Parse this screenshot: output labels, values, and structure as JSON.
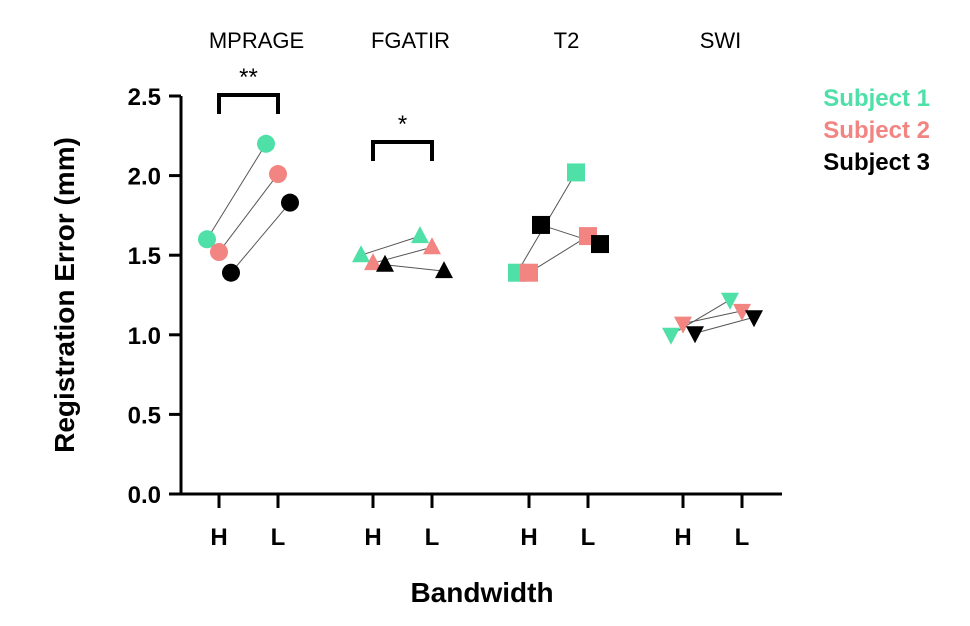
{
  "chart_data": {
    "type": "scatter",
    "title": "",
    "xlabel": "Bandwidth",
    "ylabel": "Registration Error (mm)",
    "ylim": [
      0,
      2.5
    ],
    "yticks": [
      "0.0",
      "0.5",
      "1.0",
      "1.5",
      "2.0",
      "2.5"
    ],
    "grid": false,
    "legend_position": "top-right",
    "categories": [
      "H",
      "L"
    ],
    "groups": [
      {
        "name": "MPRAGE",
        "marker": "circle",
        "significance": "**"
      },
      {
        "name": "FGATIR",
        "marker": "triangle",
        "significance": "*"
      },
      {
        "name": "T2",
        "marker": "square",
        "significance": ""
      },
      {
        "name": "SWI",
        "marker": "triangle-down",
        "significance": ""
      }
    ],
    "series": [
      {
        "name": "Subject 1",
        "color": "#4fe0a8",
        "values": {
          "MPRAGE": [
            1.6,
            2.2
          ],
          "FGATIR": [
            1.5,
            1.62
          ],
          "T2": [
            1.39,
            2.02
          ],
          "SWI": [
            1.0,
            1.22
          ]
        }
      },
      {
        "name": "Subject 2",
        "color": "#f28482",
        "values": {
          "MPRAGE": [
            1.52,
            2.01
          ],
          "FGATIR": [
            1.45,
            1.55
          ],
          "T2": [
            1.39,
            1.62
          ],
          "SWI": [
            1.07,
            1.15
          ]
        }
      },
      {
        "name": "Subject 3",
        "color": "#000000",
        "values": {
          "MPRAGE": [
            1.39,
            1.83
          ],
          "FGATIR": [
            1.44,
            1.4
          ],
          "T2": [
            1.69,
            1.57
          ],
          "SWI": [
            1.01,
            1.11
          ]
        }
      }
    ]
  }
}
